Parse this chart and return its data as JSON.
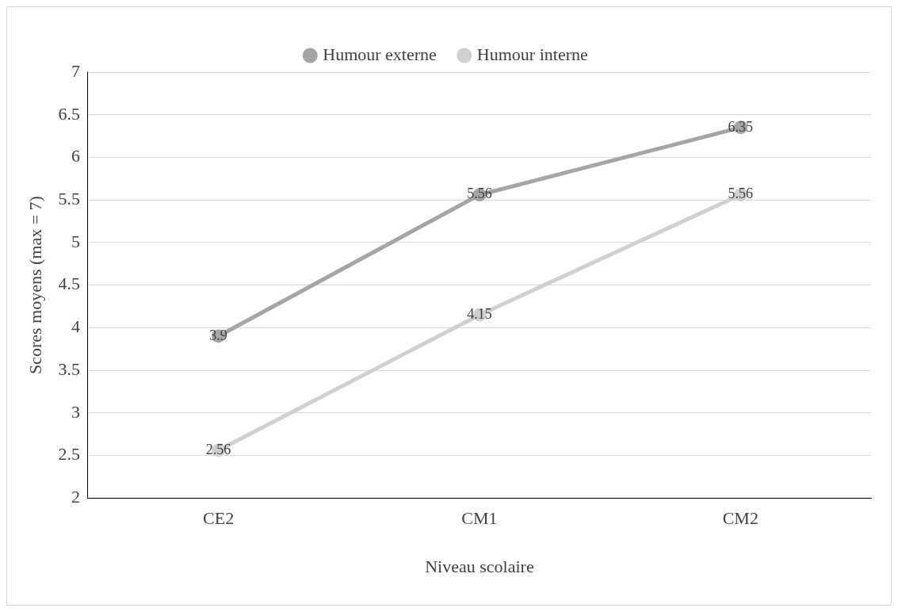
{
  "chart_data": {
    "type": "line",
    "xlabel": "Niveau scolaire",
    "ylabel": "Scores moyens (max = 7)",
    "categories": [
      "CE2",
      "CM1",
      "CM2"
    ],
    "series": [
      {
        "name": "Humour externe",
        "color": "#a5a5a5",
        "values": [
          3.9,
          5.56,
          6.35
        ]
      },
      {
        "name": "Humour interne",
        "color": "#d0d0d0",
        "values": [
          2.56,
          4.15,
          5.56
        ]
      }
    ],
    "ylim": [
      2,
      7
    ],
    "yticks": [
      2,
      2.5,
      3,
      3.5,
      4,
      4.5,
      5,
      5.5,
      6,
      6.5,
      7
    ],
    "grid": "y",
    "legend": "top",
    "marker": "circle",
    "line_style": "solid",
    "data_labels": true
  }
}
